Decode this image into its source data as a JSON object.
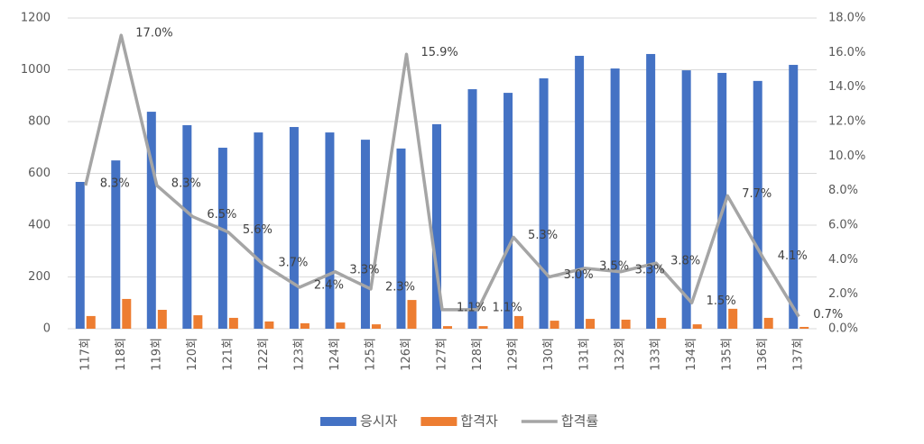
{
  "chart_data": {
    "type": "combo",
    "categories": [
      "117회",
      "118회",
      "119회",
      "120회",
      "121회",
      "122회",
      "123회",
      "124회",
      "125회",
      "126회",
      "127회",
      "128회",
      "129회",
      "130회",
      "131회",
      "132회",
      "133회",
      "134회",
      "135회",
      "136회",
      "137회"
    ],
    "series": [
      {
        "name": "응시자",
        "type": "bar",
        "color": "#4472c4",
        "values": [
          567,
          650,
          838,
          786,
          699,
          758,
          779,
          758,
          730,
          696,
          790,
          925,
          911,
          967,
          1054,
          1005,
          1061,
          998,
          988,
          957,
          1019
        ]
      },
      {
        "name": "합격자",
        "type": "bar",
        "color": "#ed7d31",
        "values": [
          49,
          115,
          73,
          52,
          42,
          28,
          21,
          24,
          17,
          111,
          10,
          10,
          49,
          31,
          38,
          35,
          42,
          17,
          77,
          42,
          7
        ]
      },
      {
        "name": "합격률",
        "type": "line",
        "axis": "y2",
        "color": "#a5a5a5",
        "values": [
          8.3,
          17.0,
          8.3,
          6.5,
          5.6,
          3.7,
          2.4,
          3.3,
          2.3,
          15.9,
          1.1,
          1.1,
          5.3,
          3.0,
          3.5,
          3.3,
          3.8,
          1.5,
          7.7,
          4.1,
          0.7
        ],
        "value_labels": [
          "8.3%",
          "17.0%",
          "8.3%",
          "6.5%",
          "5.6%",
          "3.7%",
          "2.4%",
          "3.3%",
          "2.3%",
          "15.9%",
          "1.1%",
          "1.1%",
          "5.3%",
          "3.0%",
          "3.5%",
          "3.3%",
          "3.8%",
          "1.5%",
          "7.7%",
          "4.1%",
          "0.7%"
        ]
      }
    ],
    "ylim": [
      0,
      1200
    ],
    "yticks": [
      0,
      200,
      400,
      600,
      800,
      1000,
      1200
    ],
    "y2lim": [
      0,
      18
    ],
    "y2ticks": [
      {
        "value": 0,
        "label": "0.0%"
      },
      {
        "value": 2,
        "label": "2.0%"
      },
      {
        "value": 4,
        "label": "4.0%"
      },
      {
        "value": 6,
        "label": "6.0%"
      },
      {
        "value": 8,
        "label": "8.0%"
      },
      {
        "value": 10,
        "label": "10.0%"
      },
      {
        "value": 12,
        "label": "12.0%"
      },
      {
        "value": 14,
        "label": "14.0%"
      },
      {
        "value": 16,
        "label": "16.0%"
      },
      {
        "value": 18,
        "label": "18.0%"
      }
    ],
    "grid": true,
    "legend": "bottom"
  }
}
